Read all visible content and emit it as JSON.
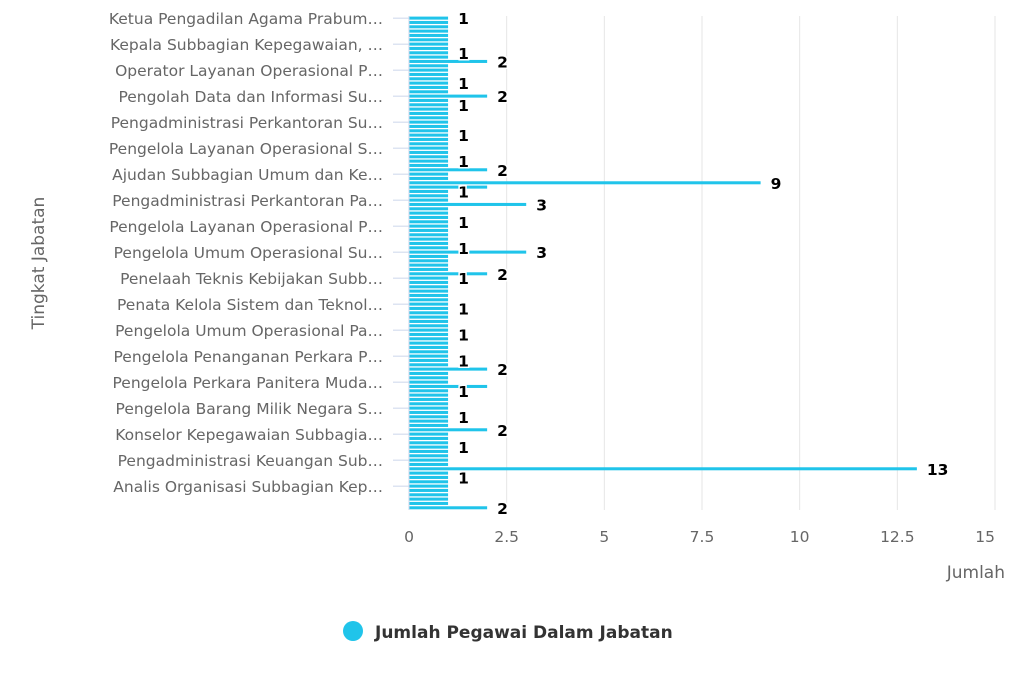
{
  "chart_data": {
    "type": "bar",
    "orientation": "horizontal",
    "xlabel": "Tingkat Jabatan",
    "ylabel": "Jumlah",
    "ylim": [
      0,
      15
    ],
    "yticks": [
      "0",
      "2.5",
      "5",
      "7.5",
      "10",
      "12.5",
      "15"
    ],
    "grid": true,
    "legend_position": "bottom-center",
    "color": "#20c4ea",
    "category_count": 114,
    "label_interval": 6,
    "labeled_categories": [
      "Ketua Pengadilan Agama Prabum…",
      "Kepala Subbagian Kepegawaian, …",
      "Operator Layanan Operasional P…",
      "Pengolah Data dan Informasi Su…",
      "Pengadministrasi Perkantoran Su…",
      "Pengelola Layanan Operasional S…",
      "Ajudan Subbagian Umum dan Ke…",
      "Pengadministrasi Perkantoran Pa…",
      "Pengelola Layanan Operasional P…",
      "Pengelola Umum Operasional Su…",
      "Penelaah Teknis Kebijakan Subb…",
      "Penata Kelola Sistem dan Teknol…",
      "Pengelola Umum Operasional Pa…",
      "Pengelola Penanganan Perkara P…",
      "Pengelola Perkara Panitera Muda…",
      "Pengelola Barang Milik Negara S…",
      "Konselor Kepegawaian Subbagia…",
      "Pengadministrasi Keuangan Sub…",
      "Analis Organisasi Subbagian Kep…"
    ],
    "default_value": 1,
    "value_overrides": {
      "10": 2,
      "18": 2,
      "35": 2,
      "38": 9,
      "39": 2,
      "43": 3,
      "54": 3,
      "59": 2,
      "81": 2,
      "85": 2,
      "95": 2,
      "104": 13,
      "113": 2
    },
    "visible_value_label_indices": [
      0,
      8,
      10,
      15,
      18,
      20,
      27,
      33,
      35,
      38,
      40,
      43,
      47,
      53,
      54,
      59,
      60,
      67,
      73,
      79,
      81,
      86,
      92,
      95,
      99,
      104,
      106,
      113
    ],
    "series": [
      {
        "name": "Jumlah Pegawai Dalam Jabatan"
      }
    ]
  }
}
